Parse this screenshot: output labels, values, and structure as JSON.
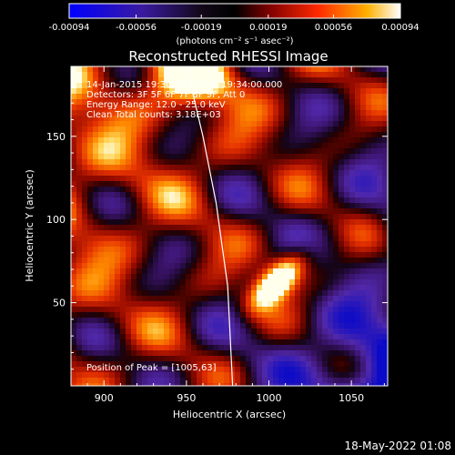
{
  "chart_data": {
    "type": "heatmap",
    "title": "Reconstructed RHESSI Image",
    "xlabel": "Heliocentric X (arcsec)",
    "ylabel": "Heliocentric Y (arcsec)",
    "xlim": [
      880,
      1072
    ],
    "ylim": [
      0,
      192
    ],
    "xticks": [
      900,
      950,
      1000,
      1050
    ],
    "yticks": [
      50,
      100,
      150
    ],
    "colorbar": {
      "ticks": [
        "-0.00094",
        "-0.00056",
        "-0.00019",
        "0.00019",
        "0.00056",
        "0.00094"
      ],
      "min": -0.00094,
      "max": 0.00094,
      "units_line": "(photons cm⁻² s⁻¹ asec⁻²)"
    },
    "annotations": [
      "14-Jan-2015 19:30:18.000 to 19:34:00.000",
      "Detectors: 3F 5F 6F 7F 8F 9F, Att 0",
      "Energy Range: 12.0 - 25.0 keV",
      "Clean     Total counts: 3.18E+03"
    ],
    "peak_label": "Position of Peak = [1005,63]",
    "peak": [
      1005,
      63
    ],
    "limb": [
      [
        950,
        192
      ],
      [
        960,
        150
      ],
      [
        968,
        110
      ],
      [
        975,
        60
      ],
      [
        978,
        0
      ]
    ],
    "datestamp": "18-May-2022 01:08"
  }
}
